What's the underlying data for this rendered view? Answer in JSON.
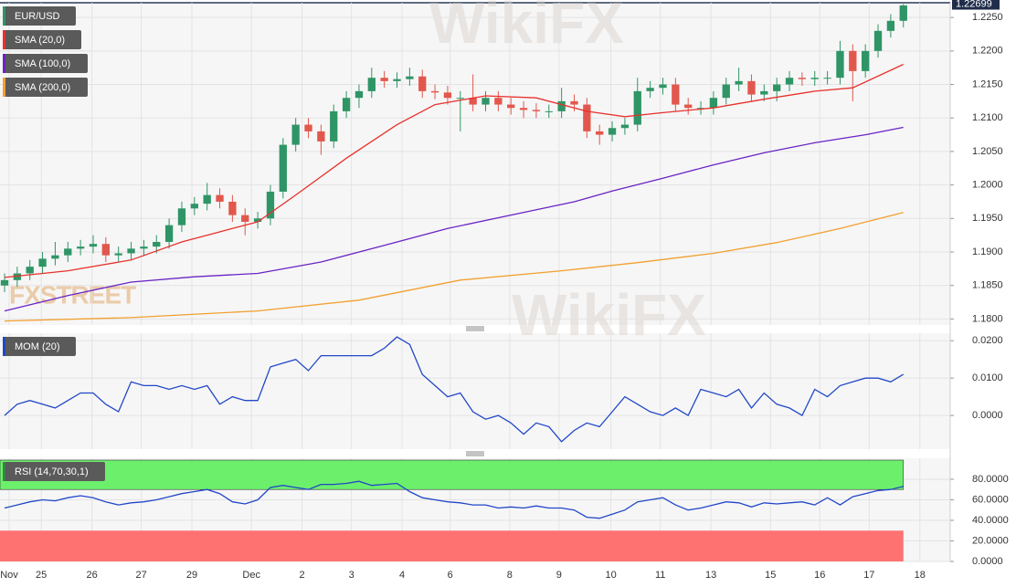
{
  "watermark": "WikiFX",
  "logo_text": "FXSTREET",
  "chart_data": [
    {
      "type": "candlestick",
      "title": "EUR/USD",
      "x": [
        0,
        1,
        2,
        3,
        4,
        5,
        6,
        7,
        8,
        9,
        10,
        11,
        12,
        13,
        14,
        15,
        16,
        17,
        18,
        19,
        20,
        21,
        22,
        23,
        24,
        25,
        26,
        27,
        28,
        29,
        30,
        31,
        32,
        33,
        34,
        35,
        36,
        37,
        38,
        39,
        40,
        41,
        42,
        43,
        44,
        45,
        46,
        47,
        48,
        49,
        50,
        51,
        52,
        53,
        54,
        55,
        56,
        57,
        58,
        59,
        60,
        61,
        62,
        63,
        64,
        65,
        66,
        67,
        68,
        69,
        70,
        71
      ],
      "open": [
        1.185,
        1.1858,
        1.1868,
        1.1878,
        1.189,
        1.1895,
        1.1905,
        1.1908,
        1.1912,
        1.1895,
        1.1898,
        1.1905,
        1.1908,
        1.1915,
        1.194,
        1.1965,
        1.1972,
        1.1985,
        1.1975,
        1.1955,
        1.1945,
        1.195,
        1.199,
        1.206,
        1.209,
        1.208,
        1.2065,
        1.211,
        1.213,
        1.214,
        1.216,
        1.2155,
        1.2158,
        1.2162,
        1.214,
        1.2138,
        1.213,
        1.213,
        1.212,
        1.213,
        1.212,
        1.2115,
        1.2112,
        1.211,
        1.211,
        1.2125,
        1.212,
        1.208,
        1.2075,
        1.2085,
        1.209,
        1.214,
        1.2145,
        1.215,
        1.212,
        1.2115,
        1.2115,
        1.213,
        1.215,
        1.2155,
        1.2135,
        1.214,
        1.215,
        1.216,
        1.2158,
        1.216,
        1.216,
        1.22,
        1.217,
        1.22,
        1.223,
        1.2245
      ],
      "high": [
        1.1868,
        1.1878,
        1.1888,
        1.19,
        1.1915,
        1.1915,
        1.1918,
        1.1925,
        1.1922,
        1.1908,
        1.1915,
        1.1918,
        1.1925,
        1.195,
        1.1975,
        1.1982,
        1.2003,
        1.1995,
        1.1985,
        1.1965,
        1.196,
        1.2,
        1.207,
        1.21,
        1.21,
        1.209,
        1.212,
        1.214,
        1.215,
        1.2175,
        1.217,
        1.2168,
        1.2175,
        1.2172,
        1.215,
        1.2148,
        1.214,
        1.2165,
        1.214,
        1.214,
        1.213,
        1.2125,
        1.2122,
        1.212,
        1.2145,
        1.2135,
        1.213,
        1.209,
        1.2095,
        1.21,
        1.216,
        1.2155,
        1.216,
        1.216,
        1.213,
        1.2125,
        1.214,
        1.216,
        1.2175,
        1.2165,
        1.215,
        1.216,
        1.217,
        1.2168,
        1.217,
        1.217,
        1.2215,
        1.221,
        1.221,
        1.224,
        1.2255,
        1.227
      ],
      "low": [
        1.184,
        1.1848,
        1.1858,
        1.1868,
        1.188,
        1.1885,
        1.1895,
        1.1898,
        1.1885,
        1.1885,
        1.1888,
        1.1895,
        1.1898,
        1.1905,
        1.193,
        1.1955,
        1.1962,
        1.1965,
        1.1945,
        1.1925,
        1.1935,
        1.194,
        1.198,
        1.205,
        1.207,
        1.2045,
        1.2055,
        1.21,
        1.2115,
        1.213,
        1.2145,
        1.2145,
        1.2148,
        1.213,
        1.2128,
        1.212,
        1.208,
        1.211,
        1.211,
        1.211,
        1.2105,
        1.21,
        1.21,
        1.21,
        1.21,
        1.211,
        1.207,
        1.206,
        1.2065,
        1.2075,
        1.208,
        1.213,
        1.2135,
        1.211,
        1.2105,
        1.2105,
        1.2105,
        1.212,
        1.214,
        1.2125,
        1.2125,
        1.2125,
        1.214,
        1.2148,
        1.2148,
        1.215,
        1.215,
        1.2125,
        1.216,
        1.219,
        1.222,
        1.2235
      ],
      "close": [
        1.1858,
        1.1868,
        1.1878,
        1.189,
        1.1895,
        1.1905,
        1.1908,
        1.1912,
        1.1895,
        1.1898,
        1.1905,
        1.1908,
        1.1915,
        1.194,
        1.1965,
        1.1972,
        1.1985,
        1.1975,
        1.1955,
        1.1945,
        1.195,
        1.199,
        1.206,
        1.209,
        1.208,
        1.2065,
        1.211,
        1.213,
        1.214,
        1.216,
        1.2155,
        1.2158,
        1.2162,
        1.214,
        1.2138,
        1.213,
        1.213,
        1.212,
        1.213,
        1.212,
        1.2115,
        1.2112,
        1.211,
        1.211,
        1.2125,
        1.212,
        1.208,
        1.2075,
        1.2085,
        1.209,
        1.214,
        1.2145,
        1.215,
        1.212,
        1.2115,
        1.2115,
        1.213,
        1.215,
        1.2155,
        1.2135,
        1.214,
        1.215,
        1.216,
        1.2158,
        1.216,
        1.216,
        1.22,
        1.217,
        1.22,
        1.223,
        1.2245,
        1.2268
      ],
      "up_color": "#2f9566",
      "down_color": "#e2574c",
      "title_color": "#2f9566",
      "xlim": [
        -0.36,
        74.7
      ],
      "ylim": [
        1.1791,
        1.2272
      ],
      "yticks": [
        {
          "value": 1.18,
          "label": "1.1800"
        },
        {
          "value": 1.185,
          "label": "1.1850"
        },
        {
          "value": 1.19,
          "label": "1.1900"
        },
        {
          "value": 1.195,
          "label": "1.1950"
        },
        {
          "value": 1.2,
          "label": "1.2000"
        },
        {
          "value": 1.205,
          "label": "1.2050"
        },
        {
          "value": 1.21,
          "label": "1.2100"
        },
        {
          "value": 1.215,
          "label": "1.2150"
        },
        {
          "value": 1.22,
          "label": "1.2200"
        },
        {
          "value": 1.225,
          "label": "1.2250"
        }
      ],
      "last_price": 1.22699,
      "series": [
        {
          "name": "SMA (20,0)",
          "color": "#e8312c",
          "x": [
            0,
            5,
            10,
            14,
            18,
            20,
            23,
            27,
            31,
            34,
            38,
            42,
            46,
            49,
            52,
            56,
            60,
            64,
            67,
            71
          ],
          "values": [
            1.1862,
            1.1872,
            1.1888,
            1.1915,
            1.1935,
            1.1945,
            1.1985,
            1.204,
            1.209,
            1.212,
            1.2133,
            1.213,
            1.211,
            1.2102,
            1.2108,
            1.2115,
            1.2128,
            1.214,
            1.2145,
            1.218
          ]
        },
        {
          "name": "SMA (100,0)",
          "color": "#6a23c4",
          "x": [
            0,
            5,
            10,
            15,
            20,
            25,
            30,
            35,
            40,
            45,
            48,
            52,
            56,
            60,
            64,
            68,
            71
          ],
          "values": [
            1.1812,
            1.1835,
            1.1855,
            1.1863,
            1.1868,
            1.1885,
            1.191,
            1.1935,
            1.1955,
            1.1975,
            1.1991,
            1.201,
            1.203,
            1.2048,
            1.2063,
            1.2075,
            1.2086
          ]
        },
        {
          "name": "SMA (200,0)",
          "color": "#f2a030",
          "x": [
            0,
            10,
            20,
            28,
            36,
            44,
            50,
            56,
            61,
            66,
            71
          ],
          "values": [
            1.1797,
            1.1802,
            1.1812,
            1.1828,
            1.1858,
            1.1872,
            1.1884,
            1.1898,
            1.1914,
            1.1935,
            1.1959
          ]
        }
      ]
    },
    {
      "type": "line",
      "xlim": [
        -0.36,
        74.7
      ],
      "ylim": [
        -0.009,
        0.022
      ],
      "yticks": [
        {
          "value": 0,
          "label": "0.0000"
        },
        {
          "value": 0.01,
          "label": "0.0100"
        },
        {
          "value": 0.02,
          "label": "0.0200"
        }
      ],
      "series": [
        {
          "name": "MOM (20)",
          "color": "#2147c8",
          "x": [
            0,
            1,
            2,
            3,
            4,
            5,
            6,
            7,
            8,
            9,
            10,
            11,
            12,
            13,
            14,
            15,
            16,
            17,
            18,
            19,
            20,
            21,
            22,
            23,
            24,
            25,
            26,
            27,
            28,
            29,
            30,
            31,
            32,
            33,
            34,
            35,
            36,
            37,
            38,
            39,
            40,
            41,
            42,
            43,
            44,
            45,
            46,
            47,
            48,
            49,
            50,
            51,
            52,
            53,
            54,
            55,
            56,
            57,
            58,
            59,
            60,
            61,
            62,
            63,
            64,
            65,
            66,
            67,
            68,
            69,
            70,
            71
          ],
          "values": [
            0.0,
            0.003,
            0.004,
            0.003,
            0.002,
            0.004,
            0.006,
            0.006,
            0.003,
            0.001,
            0.009,
            0.008,
            0.008,
            0.007,
            0.008,
            0.007,
            0.008,
            0.003,
            0.005,
            0.004,
            0.004,
            0.013,
            0.014,
            0.015,
            0.012,
            0.016,
            0.016,
            0.016,
            0.016,
            0.016,
            0.018,
            0.021,
            0.019,
            0.011,
            0.008,
            0.005,
            0.006,
            0.001,
            -0.001,
            0.0,
            -0.002,
            -0.005,
            -0.002,
            -0.003,
            -0.007,
            -0.004,
            -0.002,
            -0.003,
            0.001,
            0.005,
            0.003,
            0.001,
            0.0,
            0.002,
            0.0,
            0.007,
            0.006,
            0.005,
            0.007,
            0.002,
            0.006,
            0.003,
            0.002,
            0.0,
            0.007,
            0.005,
            0.008,
            0.009,
            0.01,
            0.01,
            0.009,
            0.011
          ]
        }
      ]
    },
    {
      "type": "line",
      "xlim": [
        -0.36,
        74.7
      ],
      "ylim": [
        0,
        100.4
      ],
      "yticks": [
        {
          "value": 0,
          "label": "0.0000"
        },
        {
          "value": 20,
          "label": "20.0000"
        },
        {
          "value": 40,
          "label": "40.0000"
        },
        {
          "value": 60,
          "label": "60.0000"
        },
        {
          "value": 80,
          "label": "80.0000"
        }
      ],
      "upper_level": 70,
      "lower_level": 30,
      "upper_color": "#6cf06c",
      "lower_color": "#ff7272",
      "title_color": "#2e8b3e",
      "xticks": [
        {
          "value": 0.36,
          "label": "Nov"
        },
        {
          "value": 2.9,
          "label": "25"
        },
        {
          "value": 6.9,
          "label": "26"
        },
        {
          "value": 10.8,
          "label": "27"
        },
        {
          "value": 14.8,
          "label": "29"
        },
        {
          "value": 19.5,
          "label": "Dec"
        },
        {
          "value": 23.5,
          "label": "2"
        },
        {
          "value": 27.4,
          "label": "3"
        },
        {
          "value": 31.4,
          "label": "4"
        },
        {
          "value": 35.2,
          "label": "6"
        },
        {
          "value": 39.9,
          "label": "8"
        },
        {
          "value": 43.8,
          "label": "9"
        },
        {
          "value": 47.9,
          "label": "10"
        },
        {
          "value": 51.8,
          "label": "11"
        },
        {
          "value": 55.8,
          "label": "13"
        },
        {
          "value": 60.5,
          "label": "15"
        },
        {
          "value": 64.4,
          "label": "16"
        },
        {
          "value": 68.3,
          "label": "17"
        },
        {
          "value": 72.3,
          "label": "18"
        }
      ],
      "series": [
        {
          "name": "RSI (14,70,30,1)",
          "color": "#2147c8",
          "x": [
            0,
            1,
            2,
            3,
            4,
            5,
            6,
            7,
            8,
            9,
            10,
            11,
            12,
            13,
            14,
            15,
            16,
            17,
            18,
            19,
            20,
            21,
            22,
            23,
            24,
            25,
            26,
            27,
            28,
            29,
            30,
            31,
            32,
            33,
            34,
            35,
            36,
            37,
            38,
            39,
            40,
            41,
            42,
            43,
            44,
            45,
            46,
            47,
            48,
            49,
            50,
            51,
            52,
            53,
            54,
            55,
            56,
            57,
            58,
            59,
            60,
            61,
            62,
            63,
            64,
            65,
            66,
            67,
            68,
            69,
            70,
            71
          ],
          "values": [
            52,
            55,
            58,
            60,
            59,
            62,
            64,
            62,
            58,
            55,
            57,
            58,
            60,
            63,
            66,
            68,
            70,
            66,
            58,
            56,
            60,
            72,
            74,
            72,
            70,
            75,
            75,
            76,
            78,
            74,
            75,
            76,
            68,
            62,
            60,
            58,
            57,
            55,
            55,
            52,
            53,
            52,
            54,
            52,
            52,
            50,
            43,
            42,
            46,
            50,
            58,
            60,
            62,
            55,
            50,
            52,
            55,
            58,
            57,
            53,
            57,
            56,
            57,
            58,
            55,
            62,
            55,
            63,
            66,
            69,
            70,
            73
          ]
        }
      ]
    }
  ]
}
